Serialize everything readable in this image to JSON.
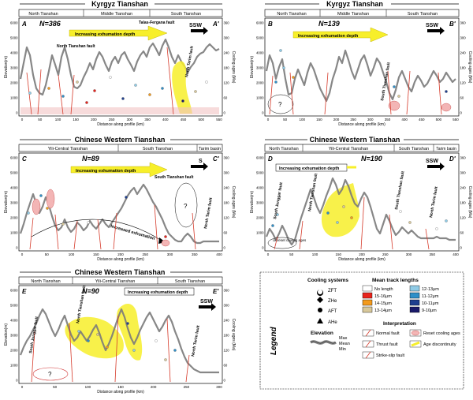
{
  "panels": [
    {
      "id": "A",
      "title": "Kyrgyz Tianshan",
      "letter": "A",
      "letter_end": "A'",
      "n_label": "N=386",
      "regions": [
        "North Tianshan",
        "Middle Tianshan",
        "South Tianshan"
      ],
      "arrow_label": "Increasing exhumation depth",
      "direction": "SSW",
      "faults": [
        "North Tianshan fault",
        "Talas-Fergana fault",
        "North Tarim fault"
      ],
      "x_ticks": [
        "0",
        "50",
        "100",
        "150",
        "200",
        "250",
        "300",
        "350",
        "400",
        "450",
        "500",
        "550"
      ]
    },
    {
      "id": "B",
      "title": "Kyrgyz Tianshan",
      "letter": "B",
      "letter_end": "B'",
      "n_label": "N=139",
      "regions": [
        "North Tianshan",
        "Middle Tianshan",
        "South Tianshan"
      ],
      "arrow_label": "Increasing exhumation depth",
      "direction": "SSW",
      "faults": [
        "South Tianshan fault"
      ],
      "unknown": "?",
      "x_ticks": [
        "0",
        "50",
        "100",
        "150",
        "200",
        "250",
        "300",
        "350",
        "400",
        "450",
        "500",
        "550"
      ]
    },
    {
      "id": "C",
      "title": "Chinese Western Tianshan",
      "letter": "C",
      "letter_end": "C'",
      "n_label": "N=89",
      "regions": [
        "Yili-Central Tianshan",
        "South Tianshan",
        "Tarim basin"
      ],
      "arrow_label": "Increasing exhumation depth",
      "direction": "S",
      "faults": [
        "South Tianshan fault",
        "North Tarim fault"
      ],
      "annotation": "Increased exhumation",
      "unknown": "?",
      "x_ticks": [
        "0",
        "50",
        "100",
        "150",
        "200",
        "250",
        "300",
        "350",
        "400"
      ]
    },
    {
      "id": "D",
      "title": "Chinese Western Tianshan",
      "letter": "D",
      "letter_end": "D'",
      "n_label": "N=190",
      "regions": [
        "North Tianshan",
        "Yili-Central Tianshan",
        "South Tianshan",
        "Tarim basin"
      ],
      "arrow_label": "Increasing exhumation depth",
      "direction": "SSW",
      "faults": [
        "South Junggar fault",
        "North Tianshan fault",
        "South Tianshan fault",
        "North Tarim fault"
      ],
      "annotation": "Unreset cooling ages",
      "x_ticks": [
        "0",
        "50",
        "100",
        "150",
        "200",
        "250",
        "300",
        "350",
        "400"
      ]
    },
    {
      "id": "E",
      "title": "Chinese Western Tianshan",
      "letter": "E",
      "letter_end": "E'",
      "n_label": "N=90",
      "regions": [
        "North Tianshan",
        "Yili-Central Tianshan",
        "South Tianshan"
      ],
      "arrow_label": "Increasing exhumation depth",
      "direction": "SSW",
      "faults": [
        "South Junggar fault",
        "North Tianshan fault",
        "North Tarim fault"
      ],
      "unknown": "?",
      "x_ticks": [
        "0",
        "50",
        "100",
        "150",
        "200",
        "250",
        "300"
      ]
    }
  ],
  "axes": {
    "ylabel_left": "Elevation(m)",
    "ylabel_right": "Cooling ages (Ma)",
    "xlabel": "Distance along profile (km)",
    "y_left_ticks": [
      "0",
      "1000",
      "2000",
      "3000",
      "4000",
      "5000",
      "6000"
    ],
    "y_right_ticks": [
      "0",
      "60",
      "120",
      "180",
      "240",
      "300",
      "360"
    ]
  },
  "legend": {
    "title": "Legend",
    "cooling_title": "Cooling systems",
    "cooling": [
      {
        "symbol": "crescent",
        "label": "ZFT"
      },
      {
        "symbol": "diamond",
        "label": "ZHe"
      },
      {
        "symbol": "circle",
        "label": "AFT"
      },
      {
        "symbol": "triangle",
        "label": "AHe"
      }
    ],
    "elevation_title": "Elevation",
    "elevation": [
      "Max",
      "Mean",
      "Min"
    ],
    "mtl_title": "Mean track lengths",
    "mtl": [
      {
        "label": "No length",
        "color": "#ffffff"
      },
      {
        "label": "15-16μm",
        "color": "#e8231c"
      },
      {
        "label": "14-15μm",
        "color": "#f39a1c"
      },
      {
        "label": "13-14μm",
        "color": "#d8c89a"
      },
      {
        "label": "12-13μm",
        "color": "#8fcbe6"
      },
      {
        "label": "11-12μm",
        "color": "#2f8fc8"
      },
      {
        "label": "10-11μm",
        "color": "#1f3f8f"
      },
      {
        "label": "9-10μm",
        "color": "#1a1a6a"
      }
    ],
    "interp_title": "Interpretation",
    "interp": [
      {
        "label": "Normal fault"
      },
      {
        "label": "Reset cooling ages"
      },
      {
        "label": "Thrust fault"
      },
      {
        "label": "Age discontinuity"
      },
      {
        "label": "Strike-slip fault"
      }
    ]
  }
}
